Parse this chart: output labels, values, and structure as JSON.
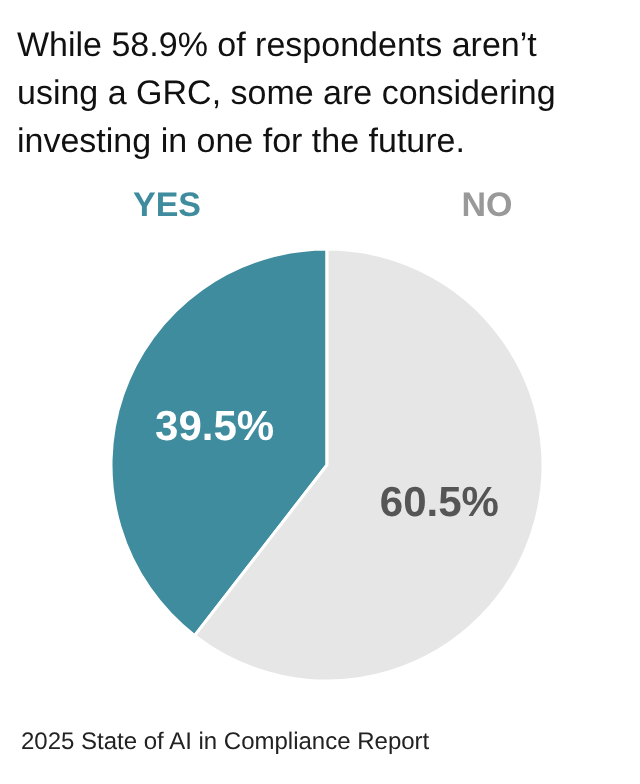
{
  "chart_data": {
    "type": "pie",
    "title": "While 58.9% of respondents aren’t using a GRC, some are considering investing in one for the future.",
    "categories": [
      "YES",
      "NO"
    ],
    "values": [
      39.5,
      60.5
    ],
    "colors": [
      "#3f8c9e",
      "#e6e6e6"
    ],
    "value_labels": [
      "39.5%",
      "60.5%"
    ],
    "annotations": [
      "2025 State of AI in Compliance Report"
    ]
  }
}
